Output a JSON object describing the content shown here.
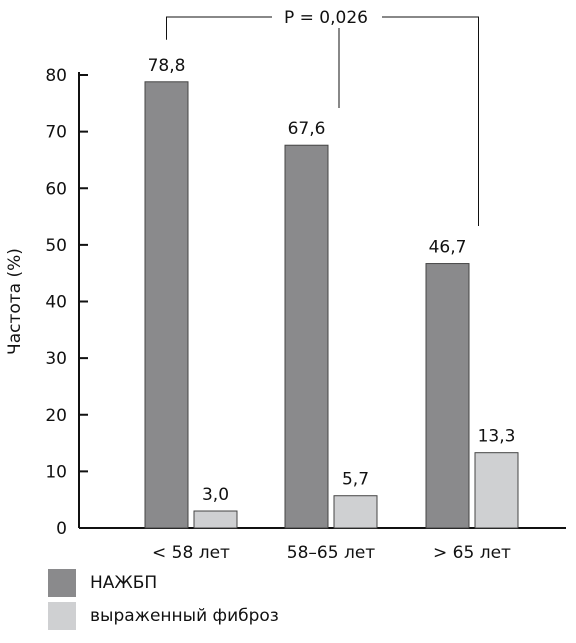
{
  "chart_data": {
    "type": "bar",
    "categories": [
      "< 58 лет",
      "58–65 лет",
      "> 65 лет"
    ],
    "series": [
      {
        "name": "НАЖБП",
        "values": [
          78.8,
          67.6,
          46.7
        ],
        "labels": [
          "78,8",
          "67,6",
          "46,7"
        ],
        "color": "#8a8a8c"
      },
      {
        "name": "выраженный фиброз",
        "values": [
          3.0,
          5.7,
          13.3
        ],
        "labels": [
          "3,0",
          "5,7",
          "13,3"
        ],
        "color": "#cfd0d2"
      }
    ],
    "ylabel": "Частота (%)",
    "xlabel": "",
    "ylim": [
      0,
      80
    ],
    "yticks": [
      "0",
      "10",
      "20",
      "30",
      "40",
      "50",
      "60",
      "70",
      "80"
    ],
    "annotation": "P = 0,026",
    "grid": false,
    "legend_position": "bottom-left"
  }
}
